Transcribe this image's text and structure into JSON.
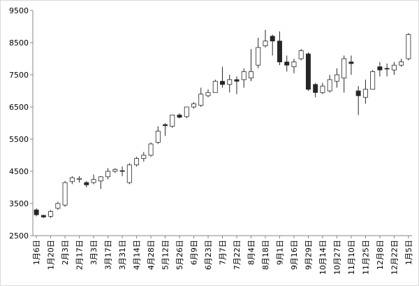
{
  "chart_data": {
    "type": "candlestick",
    "categories": [
      "1月6日",
      null,
      "1月20日",
      null,
      "2月3日",
      null,
      "2月17日",
      null,
      "3月3日",
      null,
      "3月17日",
      null,
      "3月31日",
      null,
      "4月14日",
      null,
      "4月28日",
      null,
      "5月12日",
      null,
      "5月26日",
      null,
      "6月9日",
      null,
      "6月23日",
      null,
      "7月7日",
      null,
      "7月22日",
      null,
      "8月4日",
      null,
      "8月18日",
      null,
      "9月1日",
      null,
      "9月16日",
      null,
      "9月29日",
      null,
      "10月14日",
      null,
      "10月27日",
      null,
      "11月10日",
      null,
      "11月25日",
      null,
      "12月8日",
      null,
      "12月22日",
      null,
      "1月5日"
    ],
    "open": [
      3300,
      3130,
      3100,
      3350,
      3450,
      4180,
      4250,
      4150,
      4150,
      4200,
      4330,
      4500,
      4520,
      4150,
      4700,
      4900,
      5000,
      5400,
      5950,
      5900,
      6250,
      6200,
      6500,
      6550,
      6850,
      6950,
      7300,
      7200,
      7350,
      7350,
      7400,
      7800,
      8400,
      8700,
      8550,
      7900,
      7750,
      8000,
      8150,
      7200,
      6950,
      7000,
      7300,
      7400,
      7900,
      7000,
      6800,
      7050,
      7750,
      7700,
      7650,
      7800,
      8000
    ],
    "high": [
      3350,
      3150,
      3300,
      3550,
      4200,
      4350,
      4350,
      4200,
      4400,
      4350,
      4600,
      4600,
      4650,
      4750,
      4950,
      5100,
      5400,
      5900,
      6000,
      6250,
      6300,
      6500,
      6650,
      7100,
      7050,
      7350,
      7750,
      7500,
      7450,
      7700,
      8300,
      8650,
      8900,
      8750,
      8850,
      8100,
      8000,
      8300,
      8200,
      7250,
      7250,
      7500,
      7700,
      8100,
      8100,
      7150,
      7350,
      7650,
      7900,
      7850,
      7900,
      8000,
      8800
    ],
    "low": [
      3100,
      3050,
      3050,
      3300,
      3400,
      4100,
      4150,
      4000,
      4100,
      3950,
      4250,
      4450,
      4350,
      4100,
      4650,
      4800,
      4950,
      5350,
      5600,
      5850,
      6150,
      6150,
      6450,
      6500,
      6800,
      6950,
      7100,
      6950,
      6900,
      7100,
      7300,
      7700,
      8350,
      8100,
      7800,
      7600,
      7550,
      7950,
      7000,
      6800,
      6900,
      6950,
      7100,
      6950,
      7500,
      6250,
      6600,
      7050,
      7450,
      7450,
      7500,
      7750,
      7950
    ],
    "close": [
      3150,
      3080,
      3250,
      3500,
      4150,
      4300,
      4280,
      4080,
      4250,
      4330,
      4500,
      4560,
      4500,
      4700,
      4900,
      5000,
      5350,
      5750,
      5920,
      6250,
      6180,
      6500,
      6600,
      6900,
      6950,
      7300,
      7200,
      7350,
      7300,
      7600,
      7600,
      8350,
      8550,
      8550,
      7900,
      7800,
      7900,
      8250,
      7050,
      6950,
      7150,
      7350,
      7500,
      8000,
      7850,
      6850,
      7050,
      7600,
      7650,
      7680,
      7800,
      7900,
      8750
    ],
    "up_color": "#ffffff",
    "down_color": "#262626",
    "line_color": "#262626",
    "ylim": [
      2500,
      9500
    ],
    "yticks": [
      2500,
      3500,
      4500,
      5500,
      6500,
      7500,
      8500,
      9500
    ]
  }
}
